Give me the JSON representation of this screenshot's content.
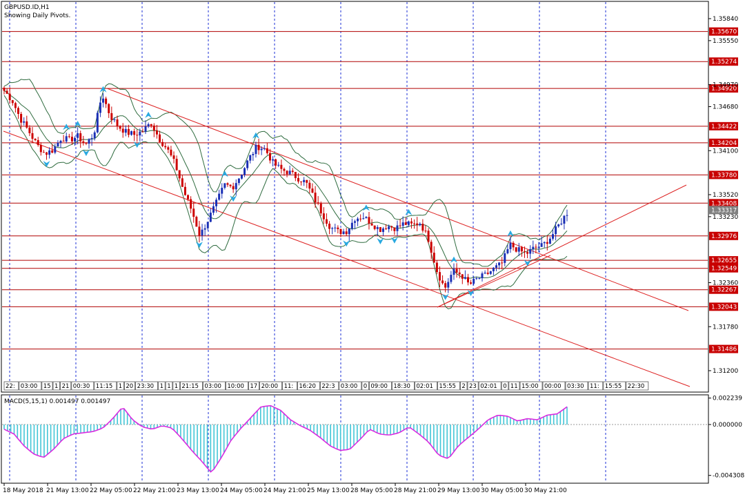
{
  "window": {
    "symbol": "GBPUSD.ID,H1",
    "indicator_note": "Showing Daily Pivots."
  },
  "colors": {
    "up": "#1a2fb5",
    "down": "#cc0000",
    "pivot": "#b00000",
    "band": "#2e6b3e",
    "trend": "#dd2222",
    "grid": "#1a2dd6",
    "arrow": "#29a9e0",
    "macd": "#42c5d6",
    "signal": "#d82be0",
    "price_tag": "#c80000",
    "current_tag": "#808080"
  },
  "chart_data": [
    {
      "type": "candlestick",
      "title": "GBPUSD.ID,H1",
      "ylim": [
        1.3098,
        1.3598
      ],
      "y_ticks": [
        "1.35840",
        "1.35550",
        "1.34970",
        "1.34680",
        "1.34100",
        "1.33520",
        "1.33230",
        "1.32360",
        "1.31780",
        "1.31200"
      ],
      "pivot_levels": [
        "1.35670",
        "1.35274",
        "1.34920",
        "1.34422",
        "1.34204",
        "1.33780",
        "1.33408",
        "1.32976",
        "1.32655",
        "1.32549",
        "1.32267",
        "1.32043",
        "1.31486"
      ],
      "current_price": "1.33317",
      "x_labels": [
        "18 May 2018",
        "21 May 13:00",
        "22 May 05:00",
        "22 May 21:00",
        "23 May 13:00",
        "24 May 05:00",
        "24 May 21:00",
        "25 May 13:00",
        "28 May 05:00",
        "28 May 21:00",
        "29 May 13:00",
        "30 May 05:00",
        "30 May 21:00"
      ],
      "time_tags": [
        "22:",
        "03:00",
        "15",
        "1",
        "21",
        "00:30",
        "11:15",
        "1",
        "20",
        "23:30",
        "1",
        "1",
        "1",
        "21:15",
        "03:00",
        "10:00",
        "17",
        "20:00",
        "11:",
        "16:20",
        "22:3",
        "03:00",
        "0",
        "09:00",
        "18:30",
        "02:01",
        "15:55",
        "2",
        "23",
        "02:01",
        "0",
        "11",
        "15:00",
        "00:00",
        "03:30",
        "11:",
        "15:55",
        "22:30"
      ],
      "close_path": [
        1.3489,
        1.3476,
        1.3452,
        1.3436,
        1.3418,
        1.3406,
        1.3411,
        1.3427,
        1.3424,
        1.3429,
        1.3418,
        1.3432,
        1.3485,
        1.3456,
        1.3442,
        1.3434,
        1.3431,
        1.3436,
        1.3447,
        1.3426,
        1.3412,
        1.3391,
        1.3357,
        1.3331,
        1.3298,
        1.3319,
        1.3341,
        1.3365,
        1.3362,
        1.3378,
        1.3399,
        1.3416,
        1.3412,
        1.3393,
        1.3385,
        1.3381,
        1.3374,
        1.3368,
        1.3347,
        1.3327,
        1.3309,
        1.3303,
        1.3304,
        1.3321,
        1.3323,
        1.3315,
        1.3306,
        1.3311,
        1.3308,
        1.3314,
        1.3312,
        1.3315,
        1.3294,
        1.3253,
        1.3228,
        1.3251,
        1.3247,
        1.3233,
        1.3241,
        1.3246,
        1.3254,
        1.3261,
        1.3286,
        1.3279,
        1.3274,
        1.3282,
        1.3285,
        1.3296,
        1.3312,
        1.3328
      ],
      "bollinger": {
        "period": "hourly",
        "bands": "upper/middle/lower"
      },
      "trendlines": 4
    },
    {
      "type": "histogram",
      "title": "MACD(5,15,1) 0.001497 0.001497",
      "ylim": [
        -0.004308,
        0.002239
      ],
      "y_ticks": [
        "0.002239",
        "0.000000",
        "-0.004308"
      ],
      "values": [
        -0.0004,
        -0.0008,
        -0.0018,
        -0.0025,
        -0.0028,
        -0.0021,
        -0.0012,
        -0.0008,
        -0.0007,
        -0.0006,
        -0.0003,
        0.0005,
        0.0015,
        0.0004,
        -0.0002,
        -0.0004,
        -0.0001,
        -0.0003,
        -0.0012,
        -0.0022,
        -0.0031,
        -0.0041,
        -0.0028,
        -0.0013,
        -0.0003,
        0.0006,
        0.0015,
        0.0016,
        0.0012,
        0.0004,
        -0.0001,
        -0.0005,
        -0.0011,
        -0.0018,
        -0.0022,
        -0.0021,
        -0.0013,
        -0.0004,
        -0.0008,
        -0.0009,
        -0.0007,
        -0.0002,
        -0.0008,
        -0.0015,
        -0.0026,
        -0.0029,
        -0.0018,
        -0.0011,
        -0.0004,
        0.0004,
        0.0008,
        0.0007,
        0.0003,
        0.0005,
        0.0004,
        0.0008,
        0.0009,
        0.0015
      ]
    }
  ]
}
